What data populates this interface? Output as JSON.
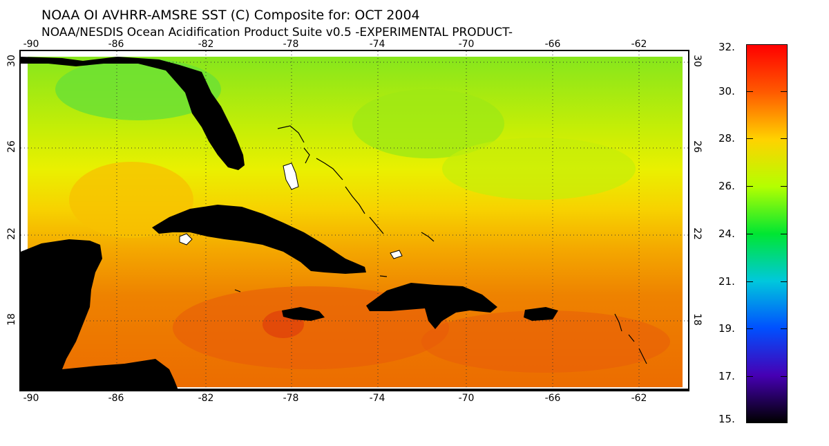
{
  "header": {
    "title": "NOAA OI AVHRR-AMSRE SST (C) Composite for: OCT 2004",
    "subtitle": "NOAA/NESDIS Ocean Acidification Product Suite  v0.5 -EXPERIMENTAL PRODUCT-"
  },
  "axes": {
    "longitude_ticks": [
      "-90",
      "-86",
      "-82",
      "-78",
      "-74",
      "-70",
      "-66",
      "-62"
    ],
    "latitude_ticks": [
      "30",
      "26",
      "22",
      "18"
    ]
  },
  "colorbar": {
    "labels": [
      "32.",
      "30.",
      "28.",
      "26.",
      "24.",
      "21.",
      "19.",
      "17.",
      "15."
    ],
    "colors": [
      "#ff0000",
      "#ff5a00",
      "#ffd200",
      "#b4ff00",
      "#00e632",
      "#00c8dc",
      "#0050ff",
      "#4600b4",
      "#000000"
    ]
  },
  "map": {
    "land_color": "#000000",
    "ocean_colors": {
      "cool": "#7ee21a",
      "mid": "#d8f000",
      "warm": "#f5b000",
      "hot": "#ee7000",
      "hottest": "#e04a0a"
    }
  }
}
